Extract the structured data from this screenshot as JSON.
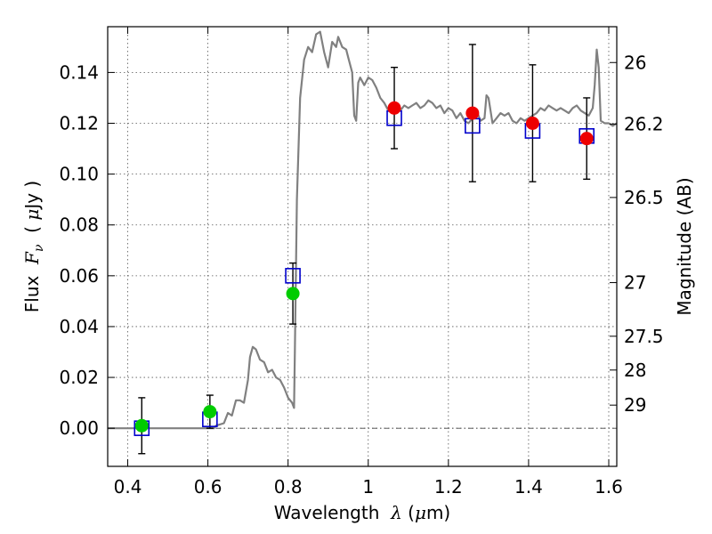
{
  "chart_data": {
    "type": "scatter",
    "title": "",
    "xlabel": {
      "prefix": "Wavelength  ",
      "symbol": "λ",
      "unit_open": " (",
      "unit_sym": "μ",
      "unit_rest": "m)"
    },
    "ylabel": {
      "prefix": "Flux  ",
      "symbol": "F",
      "sub": "ν",
      "unit_open": "  ( ",
      "unit_sym": "μ",
      "unit_rest": "Jy )"
    },
    "y2label": "Magnitude (AB)",
    "xlim": [
      0.35,
      1.62
    ],
    "ylim": [
      -0.015,
      0.158
    ],
    "grid": true,
    "xticks": [
      {
        "value": 0.4,
        "label": "0.4"
      },
      {
        "value": 0.6,
        "label": "0.6"
      },
      {
        "value": 0.8,
        "label": "0.8"
      },
      {
        "value": 1.0,
        "label": "1"
      },
      {
        "value": 1.2,
        "label": "1.2"
      },
      {
        "value": 1.4,
        "label": "1.4"
      },
      {
        "value": 1.6,
        "label": "1.6"
      }
    ],
    "yticks": [
      {
        "value": 0.0,
        "label": "0.00"
      },
      {
        "value": 0.02,
        "label": "0.02"
      },
      {
        "value": 0.04,
        "label": "0.04"
      },
      {
        "value": 0.06,
        "label": "0.06"
      },
      {
        "value": 0.08,
        "label": "0.08"
      },
      {
        "value": 0.1,
        "label": "0.10"
      },
      {
        "value": 0.12,
        "label": "0.12"
      },
      {
        "value": 0.14,
        "label": "0.14"
      }
    ],
    "y2ticks": [
      {
        "flux": 0.1439,
        "label": "26"
      },
      {
        "flux": 0.1197,
        "label": "26.2"
      },
      {
        "flux": 0.0908,
        "label": "26.5"
      },
      {
        "flux": 0.0573,
        "label": "27"
      },
      {
        "flux": 0.0362,
        "label": "27.5"
      },
      {
        "flux": 0.0229,
        "label": "28"
      },
      {
        "flux": 0.0091,
        "label": "29"
      }
    ],
    "zero_line": 0.0,
    "colors": {
      "model": "#808080",
      "model_fluxes": "#0000cc",
      "optical": "#00cc00",
      "nir": "#ee0000",
      "errorbar": "#000000"
    },
    "series": [
      {
        "kind": "line",
        "points": [
          [
            0.35,
            0.0
          ],
          [
            0.615,
            0.0
          ],
          [
            0.62,
            0.001
          ],
          [
            0.64,
            0.002
          ],
          [
            0.65,
            0.006
          ],
          [
            0.66,
            0.005
          ],
          [
            0.67,
            0.011
          ],
          [
            0.68,
            0.011
          ],
          [
            0.69,
            0.01
          ],
          [
            0.7,
            0.019
          ],
          [
            0.705,
            0.028
          ],
          [
            0.712,
            0.032
          ],
          [
            0.72,
            0.031
          ],
          [
            0.73,
            0.027
          ],
          [
            0.74,
            0.026
          ],
          [
            0.75,
            0.022
          ],
          [
            0.76,
            0.023
          ],
          [
            0.77,
            0.02
          ],
          [
            0.78,
            0.019
          ],
          [
            0.79,
            0.016
          ],
          [
            0.8,
            0.012
          ],
          [
            0.81,
            0.01
          ],
          [
            0.815,
            0.008
          ],
          [
            0.817,
            0.03
          ],
          [
            0.822,
            0.09
          ],
          [
            0.83,
            0.13
          ],
          [
            0.84,
            0.145
          ],
          [
            0.85,
            0.15
          ],
          [
            0.86,
            0.148
          ],
          [
            0.87,
            0.155
          ],
          [
            0.88,
            0.156
          ],
          [
            0.89,
            0.148
          ],
          [
            0.9,
            0.142
          ],
          [
            0.91,
            0.152
          ],
          [
            0.92,
            0.15
          ],
          [
            0.925,
            0.154
          ],
          [
            0.935,
            0.15
          ],
          [
            0.945,
            0.149
          ],
          [
            0.95,
            0.146
          ],
          [
            0.96,
            0.14
          ],
          [
            0.965,
            0.123
          ],
          [
            0.97,
            0.121
          ],
          [
            0.975,
            0.136
          ],
          [
            0.98,
            0.138
          ],
          [
            0.99,
            0.135
          ],
          [
            1.0,
            0.138
          ],
          [
            1.01,
            0.137
          ],
          [
            1.02,
            0.134
          ],
          [
            1.03,
            0.13
          ],
          [
            1.04,
            0.128
          ],
          [
            1.05,
            0.125
          ],
          [
            1.06,
            0.124
          ],
          [
            1.07,
            0.126
          ],
          [
            1.08,
            0.125
          ],
          [
            1.09,
            0.127
          ],
          [
            1.1,
            0.126
          ],
          [
            1.11,
            0.127
          ],
          [
            1.12,
            0.128
          ],
          [
            1.13,
            0.126
          ],
          [
            1.14,
            0.127
          ],
          [
            1.15,
            0.129
          ],
          [
            1.16,
            0.128
          ],
          [
            1.17,
            0.126
          ],
          [
            1.18,
            0.127
          ],
          [
            1.19,
            0.124
          ],
          [
            1.2,
            0.126
          ],
          [
            1.21,
            0.125
          ],
          [
            1.22,
            0.122
          ],
          [
            1.23,
            0.124
          ],
          [
            1.24,
            0.121
          ],
          [
            1.25,
            0.12
          ],
          [
            1.26,
            0.122
          ],
          [
            1.27,
            0.125
          ],
          [
            1.28,
            0.121
          ],
          [
            1.29,
            0.122
          ],
          [
            1.295,
            0.131
          ],
          [
            1.3,
            0.13
          ],
          [
            1.31,
            0.12
          ],
          [
            1.32,
            0.122
          ],
          [
            1.33,
            0.124
          ],
          [
            1.34,
            0.123
          ],
          [
            1.35,
            0.124
          ],
          [
            1.36,
            0.121
          ],
          [
            1.37,
            0.12
          ],
          [
            1.38,
            0.122
          ],
          [
            1.39,
            0.121
          ],
          [
            1.4,
            0.122
          ],
          [
            1.41,
            0.123
          ],
          [
            1.42,
            0.124
          ],
          [
            1.43,
            0.126
          ],
          [
            1.44,
            0.125
          ],
          [
            1.45,
            0.127
          ],
          [
            1.46,
            0.126
          ],
          [
            1.47,
            0.125
          ],
          [
            1.48,
            0.126
          ],
          [
            1.49,
            0.125
          ],
          [
            1.5,
            0.124
          ],
          [
            1.51,
            0.126
          ],
          [
            1.52,
            0.127
          ],
          [
            1.53,
            0.125
          ],
          [
            1.54,
            0.124
          ],
          [
            1.55,
            0.123
          ],
          [
            1.56,
            0.126
          ],
          [
            1.565,
            0.135
          ],
          [
            1.57,
            0.149
          ],
          [
            1.575,
            0.142
          ],
          [
            1.58,
            0.121
          ],
          [
            1.59,
            0.12
          ],
          [
            1.6,
            0.12
          ],
          [
            1.61,
            0.119
          ],
          [
            1.62,
            0.12
          ]
        ]
      },
      {
        "kind": "squares",
        "points": [
          {
            "x": 0.435,
            "y": 0.0
          },
          {
            "x": 0.605,
            "y": 0.0035
          },
          {
            "x": 0.812,
            "y": 0.06
          },
          {
            "x": 1.065,
            "y": 0.122
          },
          {
            "x": 1.26,
            "y": 0.119
          },
          {
            "x": 1.41,
            "y": 0.117
          },
          {
            "x": 1.545,
            "y": 0.115
          }
        ]
      },
      {
        "kind": "points",
        "points": [
          {
            "x": 0.435,
            "y": 0.001,
            "err": 0.011,
            "group": "optical"
          },
          {
            "x": 0.605,
            "y": 0.0065,
            "err": 0.0065,
            "group": "optical"
          },
          {
            "x": 0.812,
            "y": 0.053,
            "err": 0.012,
            "group": "optical"
          },
          {
            "x": 1.065,
            "y": 0.126,
            "err": 0.016,
            "group": "nir"
          },
          {
            "x": 1.26,
            "y": 0.124,
            "err": 0.027,
            "group": "nir"
          },
          {
            "x": 1.41,
            "y": 0.12,
            "err": 0.023,
            "group": "nir"
          },
          {
            "x": 1.545,
            "y": 0.114,
            "err": 0.016,
            "group": "nir"
          }
        ]
      }
    ]
  }
}
